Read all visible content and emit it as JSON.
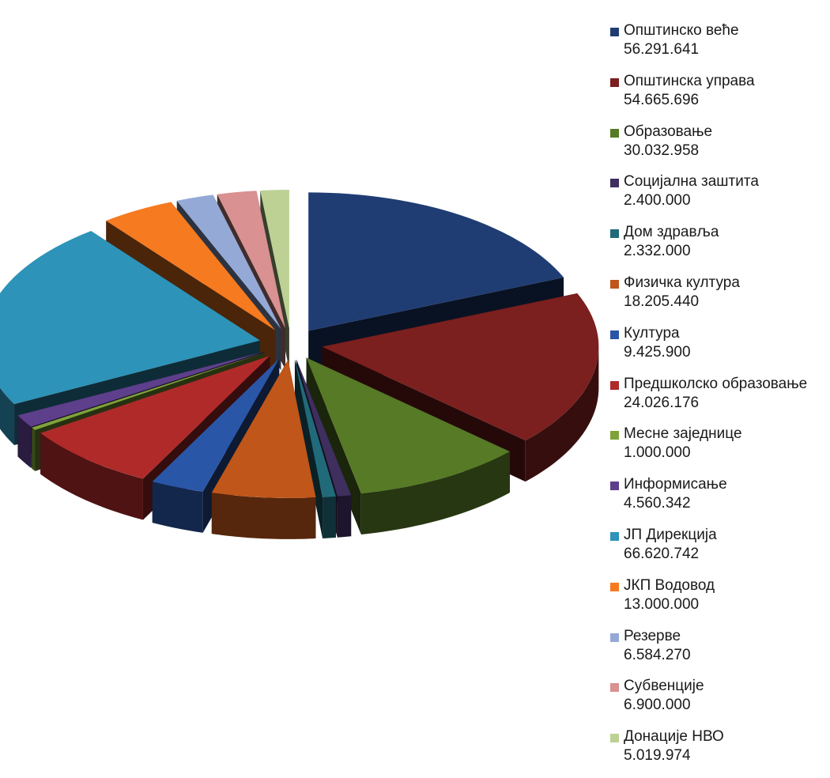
{
  "chart_data": {
    "type": "pie",
    "style": "3d-exploded",
    "legend_position": "right",
    "title": "",
    "slices": [
      {
        "label": "Општинско веће",
        "value_text": "56.291.641",
        "value": 56291641,
        "color": "#1F3D73"
      },
      {
        "label": "Општинска управа",
        "value_text": "54.665.696",
        "value": 54665696,
        "color": "#7B1F1F"
      },
      {
        "label": "Образовање",
        "value_text": "30.032.958",
        "value": 30032958,
        "color": "#567A26"
      },
      {
        "label": "Социјална заштита",
        "value_text": "2.400.000",
        "value": 2400000,
        "color": "#3E2F5F"
      },
      {
        "label": "Дом здравља",
        "value_text": "2.332.000",
        "value": 2332000,
        "color": "#216A7A"
      },
      {
        "label": "Физичка култура",
        "value_text": "18.205.440",
        "value": 18205440,
        "color": "#C0561A"
      },
      {
        "label": "Култура",
        "value_text": "9.425.900",
        "value": 9425900,
        "color": "#2A56A8"
      },
      {
        "label": "Предшколско образовање",
        "value_text": "24.026.176",
        "value": 24026176,
        "color": "#B02A2A"
      },
      {
        "label": "Месне заједнице",
        "value_text": "1.000.000",
        "value": 1000000,
        "color": "#7FA33A"
      },
      {
        "label": "Информисање",
        "value_text": "4.560.342",
        "value": 4560342,
        "color": "#5E3F8C"
      },
      {
        "label": "ЈП Дирекција",
        "value_text": "66.620.742",
        "value": 66620742,
        "color": "#2D93B8"
      },
      {
        "label": "ЈКП Водовод",
        "value_text": "13.000.000",
        "value": 13000000,
        "color": "#F57A20"
      },
      {
        "label": "Резерве",
        "value_text": "6.584.270",
        "value": 6584270,
        "color": "#94A9D6"
      },
      {
        "label": "Субвенције",
        "value_text": "6.900.000",
        "value": 6900000,
        "color": "#D99191"
      },
      {
        "label": "Донације НВО",
        "value_text": "5.019.974",
        "value": 5019974,
        "color": "#BCD193"
      }
    ]
  }
}
